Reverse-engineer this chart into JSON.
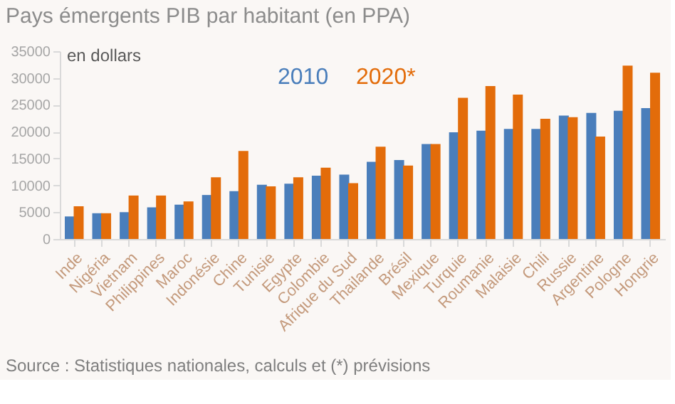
{
  "chart_data": {
    "type": "bar",
    "title": "Pays émergents PIB par habitant (en PPA)",
    "ylabel": "en dollars",
    "categories": [
      "Inde",
      "Nigéria",
      "Vietnam",
      "Philippines",
      "Maroc",
      "Indonésie",
      "Chine",
      "Tunisie",
      "Egypte",
      "Colombie",
      "Afrique du Sud",
      "Thailande",
      "Brésil",
      "Mexique",
      "Turquie",
      "Roumanie",
      "Malaisie",
      "Chili",
      "Russie",
      "Argentine",
      "Pologne",
      "Hongrie"
    ],
    "series": [
      {
        "name": "2010",
        "color": "#4a7ebb",
        "values": [
          4200,
          4800,
          5000,
          5900,
          6400,
          8200,
          8900,
          10100,
          10300,
          11800,
          12000,
          14400,
          14700,
          17700,
          19900,
          20200,
          20500,
          20500,
          23000,
          23500,
          23900,
          24400
        ]
      },
      {
        "name": "2020*",
        "color": "#e36c0a",
        "values": [
          6100,
          4800,
          8100,
          8100,
          7000,
          11500,
          16400,
          9800,
          11500,
          13300,
          10400,
          17200,
          13700,
          17700,
          26300,
          28500,
          26900,
          22400,
          22700,
          19100,
          32300,
          31000
        ]
      }
    ],
    "ylim": [
      0,
      35000
    ],
    "yticks": [
      0,
      5000,
      10000,
      15000,
      20000,
      25000,
      30000,
      35000
    ],
    "grid": false,
    "legend": "top",
    "annotations": [
      "Source : Statistiques nationales, calculs et (*) prévisions"
    ]
  }
}
